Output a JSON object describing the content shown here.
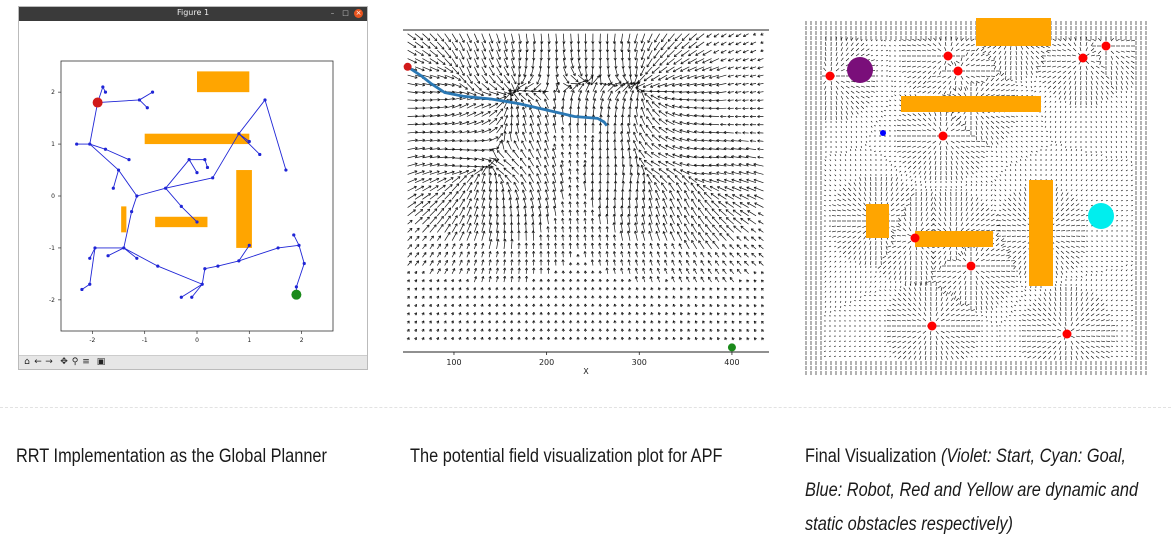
{
  "figure_window": {
    "title": "Figure 1",
    "buttons": {
      "minimize": "–",
      "maximize": "□",
      "close": "×"
    },
    "toolbar": [
      {
        "name": "home-icon",
        "glyph": "⌂"
      },
      {
        "name": "back-arrow-icon",
        "glyph": "←"
      },
      {
        "name": "forward-arrow-icon",
        "glyph": "→"
      },
      {
        "name": "pan-icon",
        "glyph": "✥"
      },
      {
        "name": "zoom-icon",
        "glyph": "⚲"
      },
      {
        "name": "configure-subplots-icon",
        "glyph": "≡"
      },
      {
        "name": "save-icon",
        "glyph": "▣"
      }
    ]
  },
  "colors": {
    "tree": "#1f25d6",
    "obstacle": "#ffa500",
    "start_red": "#d11a1a",
    "goal_green": "#1a8a1a",
    "path": "#2a78b4",
    "violet": "#7a0f7a",
    "cyan": "#00eeee",
    "robot_blue": "#0000ff",
    "dyn_red": "#ff0000"
  },
  "chart_data": [
    {
      "type": "scatter",
      "title": "",
      "xlabel": "",
      "ylabel": "",
      "xlim": [
        -2.6,
        2.6
      ],
      "ylim": [
        -2.6,
        2.6
      ],
      "xticks": [
        "-2",
        "-1",
        "0",
        "1",
        "2"
      ],
      "yticks": [
        "2",
        "1",
        "0",
        "-1",
        "-2"
      ],
      "start": [
        -1.9,
        1.8
      ],
      "goal": [
        1.9,
        -1.9
      ],
      "obstacles": [
        {
          "x0": 0.0,
          "x1": 1.0,
          "y0": 2.0,
          "y1": 2.4
        },
        {
          "x0": -1.0,
          "x1": 1.0,
          "y0": 1.0,
          "y1": 1.2
        },
        {
          "x0": 0.75,
          "x1": 1.05,
          "y0": -1.0,
          "y1": 0.5
        },
        {
          "x0": -0.8,
          "x1": 0.2,
          "y0": -0.6,
          "y1": -0.4
        },
        {
          "x0": -1.45,
          "x1": -1.35,
          "y0": -0.7,
          "y1": -0.2
        }
      ],
      "tree_edges": [
        [
          [
            -1.9,
            1.8
          ],
          [
            -1.8,
            2.1
          ]
        ],
        [
          [
            -1.8,
            2.1
          ],
          [
            -1.75,
            2.0
          ]
        ],
        [
          [
            -1.9,
            1.8
          ],
          [
            -1.1,
            1.85
          ]
        ],
        [
          [
            -1.1,
            1.85
          ],
          [
            -0.85,
            2.0
          ]
        ],
        [
          [
            -1.1,
            1.85
          ],
          [
            -0.95,
            1.7
          ]
        ],
        [
          [
            -1.9,
            1.8
          ],
          [
            -2.05,
            1.0
          ]
        ],
        [
          [
            -2.05,
            1.0
          ],
          [
            -2.3,
            1.0
          ]
        ],
        [
          [
            -2.05,
            1.0
          ],
          [
            -1.75,
            0.9
          ]
        ],
        [
          [
            -1.75,
            0.9
          ],
          [
            -1.3,
            0.7
          ]
        ],
        [
          [
            -2.05,
            1.0
          ],
          [
            -1.5,
            0.5
          ]
        ],
        [
          [
            -1.5,
            0.5
          ],
          [
            -1.6,
            0.15
          ]
        ],
        [
          [
            -1.5,
            0.5
          ],
          [
            -1.15,
            0.0
          ]
        ],
        [
          [
            -1.15,
            0.0
          ],
          [
            -1.25,
            -0.3
          ]
        ],
        [
          [
            -1.15,
            0.0
          ],
          [
            -0.6,
            0.15
          ]
        ],
        [
          [
            -0.6,
            0.15
          ],
          [
            -0.3,
            -0.2
          ]
        ],
        [
          [
            -0.3,
            -0.2
          ],
          [
            0.0,
            -0.5
          ]
        ],
        [
          [
            -0.6,
            0.15
          ],
          [
            -0.15,
            0.7
          ]
        ],
        [
          [
            -0.15,
            0.7
          ],
          [
            0.0,
            0.45
          ]
        ],
        [
          [
            -0.15,
            0.7
          ],
          [
            0.15,
            0.7
          ]
        ],
        [
          [
            0.15,
            0.7
          ],
          [
            0.2,
            0.55
          ]
        ],
        [
          [
            -0.6,
            0.15
          ],
          [
            0.3,
            0.35
          ]
        ],
        [
          [
            0.3,
            0.35
          ],
          [
            0.8,
            1.2
          ]
        ],
        [
          [
            0.8,
            1.2
          ],
          [
            1.0,
            1.05
          ]
        ],
        [
          [
            0.8,
            1.2
          ],
          [
            1.3,
            1.85
          ]
        ],
        [
          [
            1.3,
            1.85
          ],
          [
            1.7,
            0.5
          ]
        ],
        [
          [
            0.8,
            1.2
          ],
          [
            1.2,
            0.8
          ]
        ],
        [
          [
            -1.25,
            -0.3
          ],
          [
            -1.4,
            -1.0
          ]
        ],
        [
          [
            -1.4,
            -1.0
          ],
          [
            -1.95,
            -1.0
          ]
        ],
        [
          [
            -1.95,
            -1.0
          ],
          [
            -2.05,
            -1.2
          ]
        ],
        [
          [
            -1.4,
            -1.0
          ],
          [
            -1.7,
            -1.15
          ]
        ],
        [
          [
            -1.4,
            -1.0
          ],
          [
            -1.15,
            -1.2
          ]
        ],
        [
          [
            -1.4,
            -1.0
          ],
          [
            -0.75,
            -1.35
          ]
        ],
        [
          [
            -0.75,
            -1.35
          ],
          [
            0.1,
            -1.7
          ]
        ],
        [
          [
            0.1,
            -1.7
          ],
          [
            -0.3,
            -1.95
          ]
        ],
        [
          [
            0.1,
            -1.7
          ],
          [
            0.15,
            -1.4
          ]
        ],
        [
          [
            0.15,
            -1.4
          ],
          [
            0.4,
            -1.35
          ]
        ],
        [
          [
            0.4,
            -1.35
          ],
          [
            0.8,
            -1.25
          ]
        ],
        [
          [
            0.8,
            -1.25
          ],
          [
            1.0,
            -0.95
          ]
        ],
        [
          [
            0.8,
            -1.25
          ],
          [
            1.55,
            -1.0
          ]
        ],
        [
          [
            1.55,
            -1.0
          ],
          [
            1.95,
            -0.95
          ]
        ],
        [
          [
            1.95,
            -0.95
          ],
          [
            2.05,
            -1.3
          ]
        ],
        [
          [
            2.05,
            -1.3
          ],
          [
            1.9,
            -1.75
          ]
        ],
        [
          [
            1.9,
            -1.75
          ],
          [
            1.9,
            -1.9
          ]
        ],
        [
          [
            -1.95,
            -1.0
          ],
          [
            -2.05,
            -1.7
          ]
        ],
        [
          [
            -2.05,
            -1.7
          ],
          [
            -2.2,
            -1.8
          ]
        ],
        [
          [
            1.95,
            -0.95
          ],
          [
            1.85,
            -0.75
          ]
        ],
        [
          [
            0.1,
            -1.7
          ],
          [
            -0.1,
            -1.95
          ]
        ]
      ]
    },
    {
      "type": "scatter",
      "title": "",
      "xlabel": "X",
      "ylabel": "",
      "xlim": [
        45,
        440
      ],
      "xticks": [
        "100",
        "200",
        "300",
        "400"
      ],
      "start": [
        50,
        40
      ],
      "goal": [
        400,
        345
      ],
      "path": [
        [
          50,
          40
        ],
        [
          65,
          50
        ],
        [
          75,
          58
        ],
        [
          90,
          68
        ],
        [
          110,
          72
        ],
        [
          140,
          75
        ],
        [
          170,
          80
        ],
        [
          200,
          87
        ],
        [
          230,
          94
        ],
        [
          255,
          96
        ],
        [
          262,
          100
        ],
        [
          265,
          104
        ]
      ],
      "attractors": [
        [
          100,
          70
        ],
        [
          155,
          70
        ],
        [
          170,
          45
        ],
        [
          240,
          45
        ],
        [
          290,
          50
        ],
        [
          310,
          40
        ],
        [
          310,
          75
        ],
        [
          330,
          65
        ],
        [
          95,
          40
        ],
        [
          100,
          160
        ],
        [
          125,
          160
        ],
        [
          150,
          170
        ],
        [
          310,
          165
        ],
        [
          370,
          170
        ]
      ]
    }
  ],
  "final_visualization": {
    "violet_start": [
      57,
      52
    ],
    "cyan_goal": [
      298,
      198
    ],
    "robot_blue": [
      80,
      115
    ],
    "dynamic_obstacles": [
      [
        27,
        58
      ],
      [
        145,
        38
      ],
      [
        155,
        53
      ],
      [
        140,
        118
      ],
      [
        112,
        220
      ],
      [
        168,
        248
      ],
      [
        280,
        40
      ],
      [
        303,
        28
      ],
      [
        129,
        308
      ],
      [
        264,
        316
      ]
    ],
    "static_obstacles": [
      {
        "x0": 173,
        "y0": 0,
        "x1": 248,
        "y1": 28
      },
      {
        "x0": 98,
        "y0": 78,
        "x1": 238,
        "y1": 94
      },
      {
        "x0": 226,
        "y0": 162,
        "x1": 250,
        "y1": 268
      },
      {
        "x0": 63,
        "y0": 186,
        "x1": 86,
        "y1": 220
      },
      {
        "x0": 112,
        "y0": 213,
        "x1": 190,
        "y1": 229
      }
    ]
  },
  "captions": {
    "rrt": "RRT Implementation as the Global Planner",
    "apf": "The potential field visualization plot for APF",
    "final_main": "Final Visualization",
    "final_italic_1": "(Violet: Start, Cyan: Goal,",
    "final_italic_2": "Blue: Robot, Red and Yellow are dynamic and",
    "final_italic_3": "static obstacles respectively)"
  }
}
